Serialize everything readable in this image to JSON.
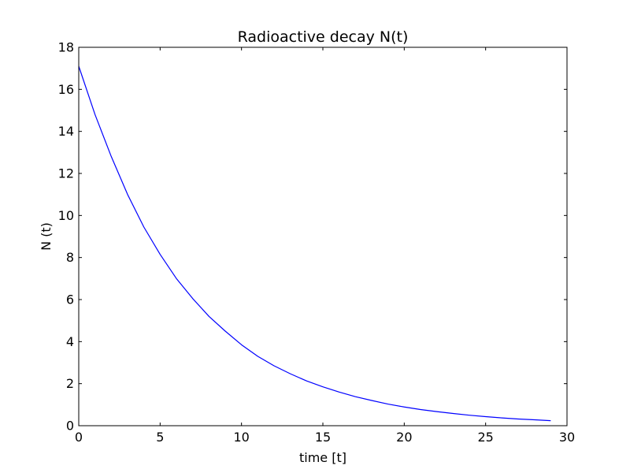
{
  "chart_data": {
    "type": "line",
    "title": "Radioactive decay N(t)",
    "xlabel": "time [t]",
    "ylabel": "N (t)",
    "xlim": [
      0,
      30
    ],
    "ylim": [
      0,
      18
    ],
    "xticks": [
      0,
      5,
      10,
      15,
      20,
      25,
      30
    ],
    "yticks": [
      0,
      2,
      4,
      6,
      8,
      10,
      12,
      14,
      16,
      18
    ],
    "grid": false,
    "legend": "none",
    "series": [
      {
        "color": "#0000ff",
        "x": [
          0,
          1,
          2,
          3,
          4,
          5,
          6,
          7,
          8,
          9,
          10,
          11,
          12,
          13,
          14,
          15,
          16,
          17,
          18,
          19,
          20,
          21,
          22,
          23,
          24,
          25,
          26,
          27,
          28,
          29
        ],
        "y": [
          17.1,
          14.8,
          12.8,
          11.0,
          9.45,
          8.15,
          7.0,
          6.05,
          5.2,
          4.5,
          3.85,
          3.3,
          2.85,
          2.47,
          2.13,
          1.85,
          1.6,
          1.38,
          1.2,
          1.03,
          0.89,
          0.77,
          0.67,
          0.58,
          0.5,
          0.43,
          0.37,
          0.32,
          0.28,
          0.24
        ]
      }
    ]
  }
}
